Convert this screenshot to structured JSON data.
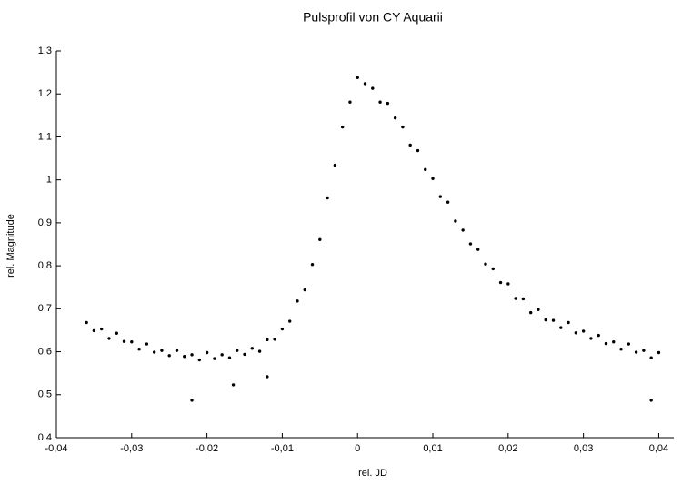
{
  "chart_data": {
    "type": "scatter",
    "title": "Pulsprofil von CY Aquarii",
    "x_label": "rel. JD",
    "y_label": "rel. Magnitude",
    "color": "#000000",
    "xlim": [
      -0.04,
      0.042
    ],
    "ylim": [
      0.4,
      1.3
    ],
    "xticks": [
      {
        "value": -0.04,
        "label": "-0,04"
      },
      {
        "value": -0.03,
        "label": "-0,03"
      },
      {
        "value": -0.02,
        "label": "-0,02"
      },
      {
        "value": -0.01,
        "label": "-0,01"
      },
      0,
      {
        "value": 0.01,
        "label": "0,01"
      },
      {
        "value": 0.02,
        "label": "0,02"
      },
      {
        "value": 0.03,
        "label": "0,03"
      },
      {
        "value": 0.04,
        "label": "0,04"
      }
    ],
    "yticks": [
      {
        "value": 0.4,
        "label": "0,4"
      },
      {
        "value": 0.5,
        "label": "0,5"
      },
      {
        "value": 0.6,
        "label": "0,6"
      },
      {
        "value": 0.7,
        "label": "0,7"
      },
      {
        "value": 0.8,
        "label": "0,8"
      },
      {
        "value": 0.9,
        "label": "0,9"
      },
      1,
      {
        "value": 1.1,
        "label": "1,1"
      },
      {
        "value": 1.2,
        "label": "1,2"
      },
      {
        "value": 1.3,
        "label": "1,3"
      }
    ],
    "x": [
      -0.036,
      -0.035,
      -0.034,
      -0.033,
      -0.032,
      -0.031,
      -0.03,
      -0.029,
      -0.028,
      -0.027,
      -0.026,
      -0.025,
      -0.024,
      -0.023,
      -0.022,
      -0.021,
      -0.02,
      -0.019,
      -0.018,
      -0.017,
      -0.016,
      -0.015,
      -0.014,
      -0.013,
      -0.012,
      -0.011,
      -0.01,
      -0.009,
      -0.008,
      -0.007,
      -0.006,
      -0.005,
      -0.004,
      -0.003,
      -0.002,
      -0.001,
      0,
      0.001,
      0.002,
      0.003,
      0.004,
      0.005,
      0.006,
      0.007,
      0.008,
      0.009,
      0.01,
      0.011,
      0.012,
      0.013,
      0.014,
      0.015,
      0.016,
      0.017,
      0.018,
      0.019,
      0.02,
      0.021,
      0.022,
      0.023,
      0.024,
      0.025,
      0.026,
      0.027,
      0.028,
      0.029,
      0.03,
      0.031,
      0.032,
      0.033,
      0.034,
      0.035,
      0.036,
      0.037,
      0.038,
      0.039,
      0.04,
      -0.022,
      0.039,
      -0.0165,
      -0.012
    ],
    "y": [
      0.668,
      0.649,
      0.653,
      0.631,
      0.643,
      0.624,
      0.623,
      0.606,
      0.618,
      0.599,
      0.603,
      0.591,
      0.603,
      0.589,
      0.593,
      0.581,
      0.598,
      0.584,
      0.593,
      0.586,
      0.603,
      0.594,
      0.608,
      0.601,
      0.628,
      0.629,
      0.653,
      0.671,
      0.718,
      0.744,
      0.803,
      0.861,
      0.958,
      1.034,
      1.123,
      1.181,
      1.238,
      1.224,
      1.213,
      1.181,
      1.178,
      1.144,
      1.123,
      1.081,
      1.068,
      1.024,
      1.003,
      0.961,
      0.948,
      0.904,
      0.883,
      0.851,
      0.838,
      0.804,
      0.793,
      0.761,
      0.758,
      0.724,
      0.723,
      0.691,
      0.698,
      0.674,
      0.673,
      0.656,
      0.668,
      0.644,
      0.648,
      0.631,
      0.638,
      0.619,
      0.623,
      0.606,
      0.618,
      0.599,
      0.603,
      0.586,
      0.598,
      0.487,
      0.487,
      0.523,
      0.542
    ]
  }
}
